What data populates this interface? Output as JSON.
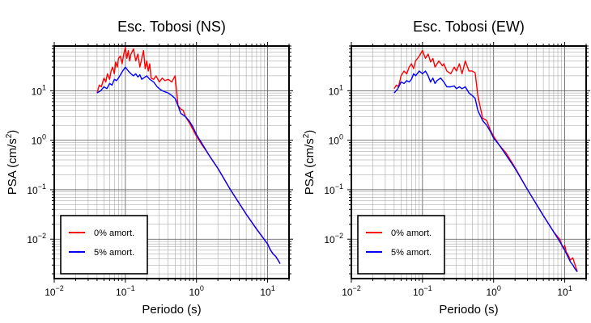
{
  "chart_data": [
    {
      "type": "line",
      "title": "Esc. Tobosi (NS)",
      "xlabel": "Periodo (s)",
      "ylabel_base": "PSA (cm/s",
      "ylabel_sup": "2",
      "ylabel_end": ")",
      "xscale": "log",
      "yscale": "log",
      "xlim": [
        0.01,
        20
      ],
      "ylim": [
        0.0016,
        80
      ],
      "x_ticks": [
        {
          "base": "10",
          "exp": "−2"
        },
        {
          "base": "10",
          "exp": "−1"
        },
        {
          "base": "10",
          "exp": "0"
        },
        {
          "base": "10",
          "exp": "1"
        }
      ],
      "y_ticks": [
        {
          "base": "10",
          "exp": "−2"
        },
        {
          "base": "10",
          "exp": "−1"
        },
        {
          "base": "10",
          "exp": "0"
        },
        {
          "base": "10",
          "exp": "1"
        }
      ],
      "grid": true,
      "legend_position": "bottom-left",
      "series": [
        {
          "name": "0% amort.",
          "color": "#ff0000",
          "x": [
            0.04,
            0.043,
            0.046,
            0.05,
            0.053,
            0.056,
            0.06,
            0.063,
            0.066,
            0.07,
            0.073,
            0.077,
            0.08,
            0.085,
            0.09,
            0.095,
            0.1,
            0.105,
            0.11,
            0.115,
            0.12,
            0.13,
            0.14,
            0.15,
            0.16,
            0.17,
            0.18,
            0.19,
            0.2,
            0.21,
            0.22,
            0.23,
            0.25,
            0.27,
            0.3,
            0.33,
            0.36,
            0.4,
            0.45,
            0.5,
            0.55,
            0.6,
            0.65,
            0.7,
            0.8,
            0.9,
            1.0,
            1.2,
            1.5,
            2,
            3,
            5,
            7,
            8.5,
            10,
            11,
            12,
            13,
            14,
            15
          ],
          "y": [
            9,
            13,
            12,
            18,
            15,
            22,
            17,
            25,
            30,
            22,
            38,
            30,
            45,
            50,
            35,
            55,
            75,
            45,
            65,
            40,
            55,
            70,
            40,
            55,
            30,
            45,
            65,
            28,
            40,
            25,
            35,
            18,
            17,
            20,
            15,
            18,
            16,
            17,
            15,
            20,
            5,
            4.3,
            4,
            3,
            2.2,
            1.6,
            1.2,
            0.8,
            0.5,
            0.27,
            0.1,
            0.032,
            0.016,
            0.011,
            0.008,
            0.006,
            0.005,
            0.0045,
            0.0038,
            0.0032
          ]
        },
        {
          "name": "5% amort.",
          "color": "#0000ff",
          "x": [
            0.04,
            0.045,
            0.05,
            0.055,
            0.06,
            0.065,
            0.07,
            0.075,
            0.08,
            0.09,
            0.1,
            0.11,
            0.12,
            0.13,
            0.14,
            0.15,
            0.16,
            0.17,
            0.18,
            0.2,
            0.22,
            0.25,
            0.28,
            0.3,
            0.33,
            0.36,
            0.4,
            0.45,
            0.5,
            0.55,
            0.6,
            0.7,
            0.8,
            0.9,
            1.0,
            1.2,
            1.5,
            2,
            3,
            5,
            7,
            8.5,
            10,
            11,
            12,
            13,
            14,
            15
          ],
          "y": [
            9,
            10,
            12,
            11,
            14,
            13,
            17,
            16,
            18,
            24,
            30,
            25,
            22,
            20,
            22,
            19,
            21,
            17,
            18,
            20,
            17,
            15,
            12,
            11,
            10,
            9.5,
            9,
            8,
            7,
            5,
            3.5,
            3,
            2.4,
            1.8,
            1.3,
            0.85,
            0.5,
            0.27,
            0.1,
            0.032,
            0.016,
            0.011,
            0.008,
            0.006,
            0.005,
            0.0045,
            0.0038,
            0.0032
          ]
        }
      ]
    },
    {
      "type": "line",
      "title": "Esc. Tobosi (EW)",
      "xlabel": "Periodo (s)",
      "ylabel_base": "PSA (cm/s",
      "ylabel_sup": "2",
      "ylabel_end": ")",
      "xscale": "log",
      "yscale": "log",
      "xlim": [
        0.01,
        20
      ],
      "ylim": [
        0.0016,
        80
      ],
      "x_ticks": [
        {
          "base": "10",
          "exp": "−2"
        },
        {
          "base": "10",
          "exp": "−1"
        },
        {
          "base": "10",
          "exp": "0"
        },
        {
          "base": "10",
          "exp": "1"
        }
      ],
      "y_ticks": [
        {
          "base": "10",
          "exp": "−2"
        },
        {
          "base": "10",
          "exp": "−1"
        },
        {
          "base": "10",
          "exp": "0"
        },
        {
          "base": "10",
          "exp": "1"
        }
      ],
      "grid": true,
      "legend_position": "bottom-left",
      "series": [
        {
          "name": "0% amort.",
          "color": "#ff0000",
          "x": [
            0.04,
            0.043,
            0.046,
            0.05,
            0.055,
            0.06,
            0.065,
            0.07,
            0.075,
            0.08,
            0.09,
            0.1,
            0.11,
            0.12,
            0.13,
            0.14,
            0.15,
            0.17,
            0.19,
            0.2,
            0.22,
            0.25,
            0.28,
            0.3,
            0.33,
            0.36,
            0.4,
            0.45,
            0.5,
            0.55,
            0.6,
            0.7,
            0.8,
            0.9,
            1.0,
            1.2,
            1.5,
            2,
            3,
            5,
            7,
            8.5,
            9.5,
            10,
            10.5,
            11,
            12,
            13,
            14,
            15
          ],
          "y": [
            11,
            13,
            12,
            20,
            25,
            22,
            30,
            35,
            28,
            40,
            50,
            65,
            45,
            55,
            38,
            45,
            30,
            40,
            32,
            35,
            25,
            22,
            30,
            25,
            35,
            22,
            40,
            25,
            25,
            23,
            8,
            2.8,
            2.5,
            1.6,
            1.2,
            0.8,
            0.55,
            0.28,
            0.1,
            0.03,
            0.014,
            0.01,
            0.0065,
            0.0075,
            0.0055,
            0.005,
            0.0038,
            0.0042,
            0.003,
            0.0022
          ]
        },
        {
          "name": "5% amort.",
          "color": "#0000ff",
          "x": [
            0.04,
            0.045,
            0.05,
            0.055,
            0.06,
            0.065,
            0.07,
            0.075,
            0.08,
            0.09,
            0.1,
            0.11,
            0.12,
            0.13,
            0.14,
            0.15,
            0.16,
            0.18,
            0.2,
            0.22,
            0.25,
            0.28,
            0.3,
            0.33,
            0.36,
            0.4,
            0.45,
            0.5,
            0.55,
            0.6,
            0.7,
            0.8,
            0.9,
            1.0,
            1.2,
            1.5,
            2,
            3,
            5,
            7,
            8.5,
            10,
            11,
            12,
            13,
            14,
            15
          ],
          "y": [
            9,
            11,
            15,
            14,
            16,
            15,
            17,
            22,
            20,
            25,
            22,
            25,
            20,
            15,
            18,
            14,
            16,
            18,
            15,
            12,
            12,
            12.5,
            11,
            12,
            11,
            12,
            9,
            8,
            7,
            4,
            2.5,
            2.0,
            1.5,
            1.1,
            0.8,
            0.5,
            0.27,
            0.1,
            0.03,
            0.014,
            0.009,
            0.006,
            0.0045,
            0.0035,
            0.003,
            0.0025,
            0.0022
          ]
        }
      ]
    }
  ]
}
